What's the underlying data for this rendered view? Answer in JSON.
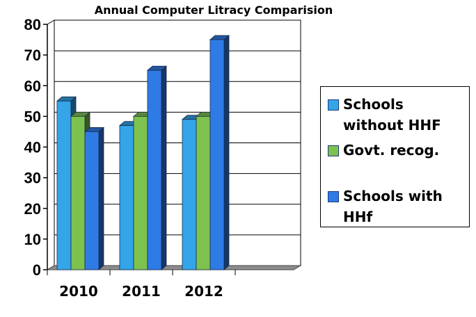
{
  "chart_data": {
    "type": "bar",
    "title": "Annual Computer Litracy Comparision",
    "categories": [
      "2010",
      "2011",
      "2012"
    ],
    "series": [
      {
        "name": "Schools without HHF",
        "values": [
          55,
          47,
          49
        ],
        "color": "#33a5e8"
      },
      {
        "name": "Govt. recog.",
        "values": [
          50,
          50,
          50
        ],
        "color": "#7dc24f"
      },
      {
        "name": "Schools with HHf",
        "values": [
          45,
          65,
          75
        ],
        "color": "#2f7be6"
      }
    ],
    "ylim": [
      0,
      80
    ],
    "yticks": [
      "0",
      "10",
      "20",
      "30",
      "40",
      "50",
      "60",
      "70",
      "80"
    ],
    "grid": true,
    "legend_position": "right"
  }
}
